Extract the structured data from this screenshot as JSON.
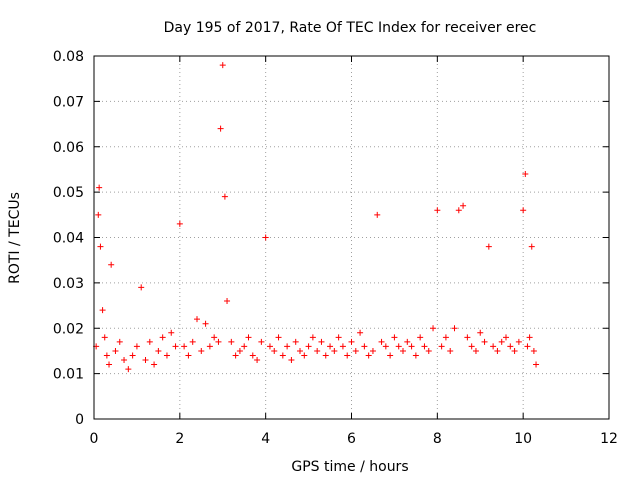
{
  "chart_data": {
    "type": "scatter",
    "title": "Day 195 of 2017, Rate Of TEC Index for receiver erec",
    "xlabel": "GPS time / hours",
    "ylabel": "ROTI / TECUs",
    "xlim": [
      0,
      12
    ],
    "ylim": [
      0,
      0.08
    ],
    "x_ticks": [
      0,
      2,
      4,
      6,
      8,
      10,
      12
    ],
    "y_ticks": [
      0,
      0.01,
      0.02,
      0.03,
      0.04,
      0.05,
      0.06,
      0.07,
      0.08
    ],
    "x_tick_labels": [
      "0",
      "2",
      "4",
      "6",
      "8",
      "10",
      "12"
    ],
    "y_tick_labels": [
      "0",
      "0.01",
      "0.02",
      "0.03",
      "0.04",
      "0.05",
      "0.06",
      "0.07",
      "0.08"
    ],
    "grid": true,
    "marker": "plus",
    "marker_color": "#ff0000",
    "series": [
      {
        "name": "ROTI",
        "x": [
          0.05,
          0.1,
          0.12,
          0.15,
          0.2,
          0.25,
          0.3,
          0.35,
          0.4,
          0.5,
          0.6,
          0.7,
          0.8,
          0.9,
          1.0,
          1.1,
          1.2,
          1.3,
          1.4,
          1.5,
          1.6,
          1.7,
          1.8,
          1.9,
          2.0,
          2.1,
          2.2,
          2.3,
          2.4,
          2.5,
          2.6,
          2.7,
          2.8,
          2.9,
          2.95,
          3.0,
          3.05,
          3.1,
          3.2,
          3.3,
          3.4,
          3.5,
          3.6,
          3.7,
          3.8,
          3.9,
          4.0,
          4.1,
          4.2,
          4.3,
          4.4,
          4.5,
          4.6,
          4.7,
          4.8,
          4.9,
          5.0,
          5.1,
          5.2,
          5.3,
          5.4,
          5.5,
          5.6,
          5.7,
          5.8,
          5.9,
          6.0,
          6.1,
          6.2,
          6.3,
          6.4,
          6.5,
          6.6,
          6.7,
          6.8,
          6.9,
          7.0,
          7.1,
          7.2,
          7.3,
          7.4,
          7.5,
          7.6,
          7.7,
          7.8,
          7.9,
          8.0,
          8.1,
          8.2,
          8.3,
          8.4,
          8.5,
          8.6,
          8.7,
          8.8,
          8.9,
          9.0,
          9.1,
          9.2,
          9.3,
          9.4,
          9.5,
          9.6,
          9.7,
          9.8,
          9.9,
          10.0,
          10.05,
          10.1,
          10.15,
          10.2,
          10.25,
          10.3
        ],
        "y": [
          0.016,
          0.045,
          0.051,
          0.038,
          0.024,
          0.018,
          0.014,
          0.012,
          0.034,
          0.015,
          0.017,
          0.013,
          0.011,
          0.014,
          0.016,
          0.029,
          0.013,
          0.017,
          0.012,
          0.015,
          0.018,
          0.014,
          0.019,
          0.016,
          0.043,
          0.016,
          0.014,
          0.017,
          0.022,
          0.015,
          0.021,
          0.016,
          0.018,
          0.017,
          0.064,
          0.078,
          0.049,
          0.026,
          0.017,
          0.014,
          0.015,
          0.016,
          0.018,
          0.014,
          0.013,
          0.017,
          0.04,
          0.016,
          0.015,
          0.018,
          0.014,
          0.016,
          0.013,
          0.017,
          0.015,
          0.014,
          0.016,
          0.018,
          0.015,
          0.017,
          0.014,
          0.016,
          0.015,
          0.018,
          0.016,
          0.014,
          0.017,
          0.015,
          0.019,
          0.016,
          0.014,
          0.015,
          0.045,
          0.017,
          0.016,
          0.014,
          0.018,
          0.016,
          0.015,
          0.017,
          0.016,
          0.014,
          0.018,
          0.016,
          0.015,
          0.02,
          0.046,
          0.016,
          0.018,
          0.015,
          0.02,
          0.046,
          0.047,
          0.018,
          0.016,
          0.015,
          0.019,
          0.017,
          0.038,
          0.016,
          0.015,
          0.017,
          0.018,
          0.016,
          0.015,
          0.017,
          0.046,
          0.054,
          0.016,
          0.018,
          0.038,
          0.015,
          0.012
        ]
      }
    ]
  }
}
